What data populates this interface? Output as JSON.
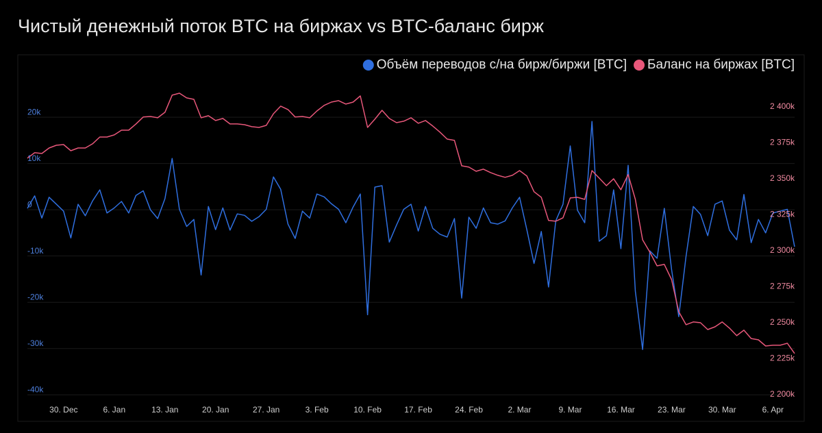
{
  "chart_data": {
    "type": "line",
    "title": "Чистый денежный поток BTC на биржах vs BTC-баланс бирж",
    "categories": [
      null,
      null,
      null,
      null,
      null,
      "30. Dec",
      null,
      null,
      null,
      null,
      null,
      null,
      "6. Jan",
      null,
      null,
      null,
      null,
      null,
      null,
      "13. Jan",
      null,
      null,
      null,
      null,
      null,
      null,
      "20. Jan",
      null,
      null,
      null,
      null,
      null,
      null,
      "27. Jan",
      null,
      null,
      null,
      null,
      null,
      null,
      "3. Feb",
      null,
      null,
      null,
      null,
      null,
      null,
      "10. Feb",
      null,
      null,
      null,
      null,
      null,
      null,
      "17. Feb",
      null,
      null,
      null,
      null,
      null,
      null,
      "24. Feb",
      null,
      null,
      null,
      null,
      null,
      null,
      "2. Mar",
      null,
      null,
      null,
      null,
      null,
      null,
      "9. Mar",
      null,
      null,
      null,
      null,
      null,
      null,
      "16. Mar",
      null,
      null,
      null,
      null,
      null,
      null,
      "23. Mar",
      null,
      null,
      null,
      null,
      null,
      null,
      "30. Mar",
      null,
      null,
      null,
      null,
      null,
      null,
      "6. Apr",
      null,
      null,
      null
    ],
    "series": [
      {
        "name": "Объём переводов с/на бирж/биржи [BTC]",
        "color": "#2f6fe0",
        "axis": "y",
        "values": [
          300,
          3000,
          -1800,
          2700,
          1200,
          -300,
          -6100,
          1200,
          -1300,
          1900,
          4300,
          -700,
          400,
          1800,
          -700,
          3100,
          4100,
          0,
          -1900,
          2400,
          11100,
          100,
          -3600,
          -2100,
          -14100,
          700,
          -4300,
          400,
          -4400,
          -900,
          -1200,
          -2500,
          -1500,
          100,
          7100,
          4400,
          -3100,
          -6200,
          -300,
          -1800,
          3400,
          2800,
          1300,
          100,
          -2800,
          600,
          3400,
          -22700,
          4900,
          5200,
          -7000,
          -3300,
          100,
          1200,
          -4600,
          700,
          -4000,
          -5300,
          -5900,
          -1900,
          -19100,
          -1600,
          -4000,
          400,
          -2800,
          -3100,
          -2400,
          400,
          2700,
          -4300,
          -11600,
          -4700,
          -16700,
          -2400,
          1200,
          13800,
          -100,
          -2800,
          19100,
          -6800,
          -5600,
          4300,
          -8400,
          9600,
          -17600,
          -30200,
          -8900,
          -10500,
          300,
          -12900,
          -23100,
          -10100,
          700,
          -1000,
          -5600,
          1200,
          1900,
          -4400,
          -6500,
          3300,
          -7100,
          -2100,
          -5000,
          -700,
          -300,
          100,
          -8000
        ]
      },
      {
        "name": "Баланс на биржах [BTC]",
        "color": "#e8577a",
        "axis": "y2",
        "values": [
          2364300,
          2368100,
          2367600,
          2371400,
          2373300,
          2373800,
          2369500,
          2371400,
          2371400,
          2374300,
          2379000,
          2379000,
          2380500,
          2383800,
          2383800,
          2388100,
          2392900,
          2393300,
          2392400,
          2396200,
          2408100,
          2409500,
          2406200,
          2405200,
          2392400,
          2393800,
          2390500,
          2391900,
          2388100,
          2388100,
          2387600,
          2386200,
          2385700,
          2387100,
          2395200,
          2400500,
          2398100,
          2392900,
          2393300,
          2392400,
          2397100,
          2401000,
          2403300,
          2404300,
          2401900,
          2403300,
          2407600,
          2385700,
          2391400,
          2397600,
          2391900,
          2389000,
          2390000,
          2392400,
          2388600,
          2390500,
          2386700,
          2382400,
          2377600,
          2376700,
          2359000,
          2358100,
          2355200,
          2356700,
          2354300,
          2352400,
          2351000,
          2352400,
          2355700,
          2351900,
          2341000,
          2337100,
          2321000,
          2320500,
          2322900,
          2336700,
          2337100,
          2335700,
          2355700,
          2350500,
          2345200,
          2350000,
          2342400,
          2352900,
          2335700,
          2307600,
          2299000,
          2289500,
          2290500,
          2280000,
          2257600,
          2248600,
          2250500,
          2250000,
          2245200,
          2247100,
          2250500,
          2246200,
          2241000,
          2244800,
          2239000,
          2238100,
          2233800,
          2234300,
          2234300,
          2235700,
          2228600
        ]
      }
    ],
    "ylim": [
      -41300,
      33200
    ],
    "yticks": [
      {
        "value": -40000,
        "label": "-40k"
      },
      {
        "value": -30000,
        "label": "-30k"
      },
      {
        "value": -20000,
        "label": "-20k"
      },
      {
        "value": -10000,
        "label": "-10k"
      },
      0,
      {
        "value": 10000,
        "label": "10k"
      },
      {
        "value": 20000,
        "label": "20k"
      }
    ],
    "y2lim": [
      2195700,
      2435200
    ],
    "y2ticks": [
      {
        "value": 2200000,
        "label": "2 200k"
      },
      {
        "value": 2225000,
        "label": "2 225k"
      },
      {
        "value": 2250000,
        "label": "2 250k"
      },
      {
        "value": 2275000,
        "label": "2 275k"
      },
      {
        "value": 2300000,
        "label": "2 300k"
      },
      {
        "value": 2325000,
        "label": "2 325k"
      },
      {
        "value": 2350000,
        "label": "2 350k"
      },
      {
        "value": 2375000,
        "label": "2 375k"
      },
      {
        "value": 2400000,
        "label": "2 400k"
      }
    ],
    "grid": true,
    "legend": "top-right"
  }
}
